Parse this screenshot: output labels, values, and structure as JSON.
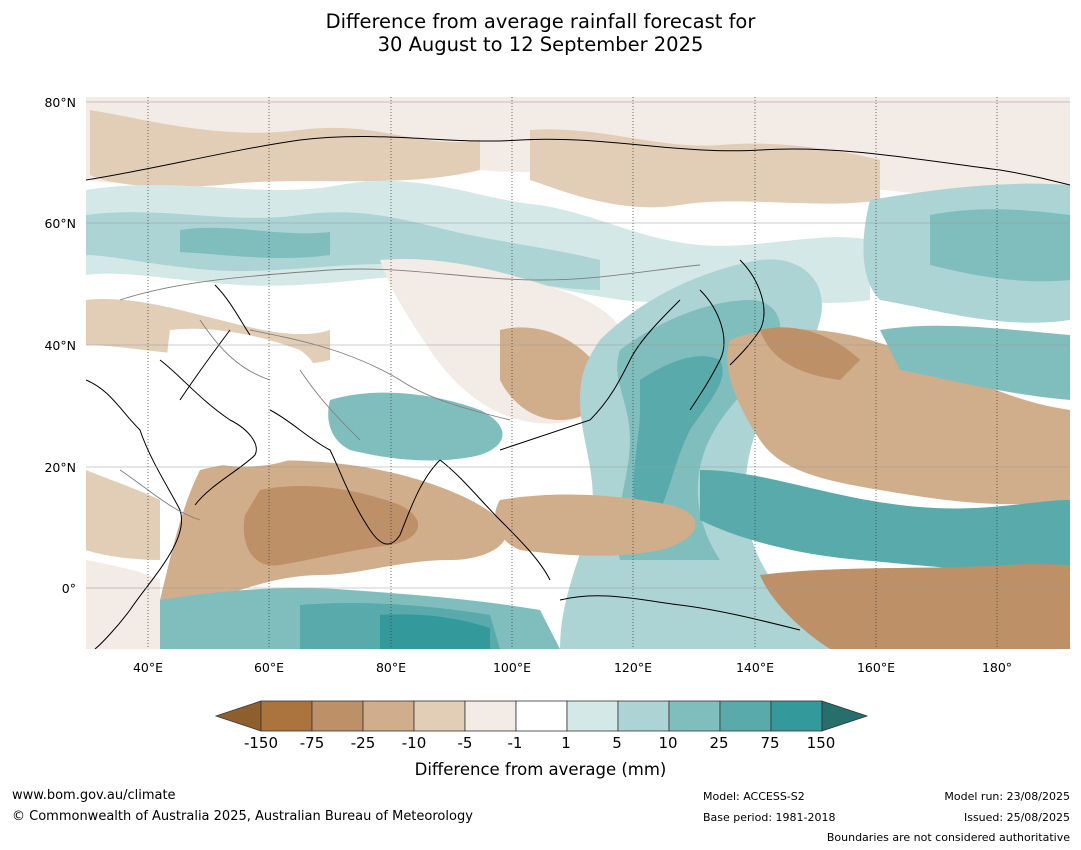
{
  "title": {
    "line1": "Difference from average rainfall forecast for",
    "line2": "30 August to 12 September 2025"
  },
  "map": {
    "lat_labels": [
      "80°N",
      "60°N",
      "40°N",
      "20°N",
      "0°"
    ],
    "lon_labels": [
      "40°E",
      "60°E",
      "80°E",
      "100°E",
      "120°E",
      "140°E",
      "160°E",
      "180°"
    ]
  },
  "colorbar": {
    "title": "Difference from average (mm)",
    "tick_labels": [
      "-150",
      "-75",
      "-25",
      "-10",
      "-5",
      "-1",
      "1",
      "5",
      "10",
      "25",
      "75",
      "150"
    ],
    "colors": {
      "below_min": "#8f5e2d",
      "bins": [
        "#ab733d",
        "#be9067",
        "#d1ae8b",
        "#e2cdb7",
        "#f3ebe5",
        "#ffffff",
        "#d5e8e8",
        "#acd4d4",
        "#80bebd",
        "#59abab",
        "#34999a"
      ],
      "above_max": "#266f6c"
    }
  },
  "footer": {
    "website": "www.bom.gov.au/climate",
    "copyright": "© Commonwealth of Australia 2025, Australian Bureau of Meteorology",
    "model": "Model: ACCESS-S2",
    "base_period": "Base period: 1981-2018",
    "model_run": "Model run: 23/08/2025",
    "issued": "Issued: 25/08/2025",
    "disclaimer": "Boundaries are not considered authoritative"
  }
}
